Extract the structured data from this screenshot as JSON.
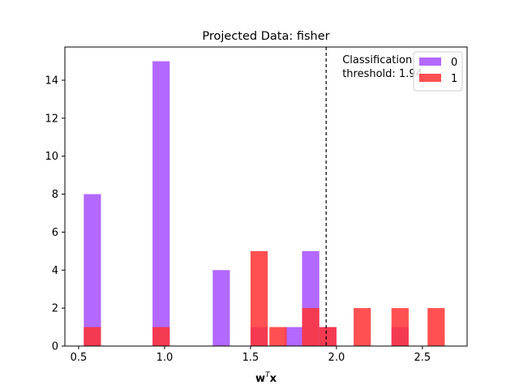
{
  "chart_data": {
    "type": "bar",
    "title": "Projected Data: fisher",
    "xlabel_main": "w",
    "xlabel_sup": "T",
    "xlabel_tail": "x",
    "ylabel": "",
    "xlim": [
      0.42,
      2.76
    ],
    "ylim": [
      0,
      15.75
    ],
    "xticks": [
      0.5,
      1.0,
      1.5,
      2.0,
      2.5
    ],
    "xtick_labels": [
      "0.5",
      "1.0",
      "1.5",
      "2.0",
      "2.5"
    ],
    "yticks": [
      0,
      2,
      4,
      6,
      8,
      10,
      12,
      14
    ],
    "ytick_labels": [
      "0",
      "2",
      "4",
      "6",
      "8",
      "10",
      "12",
      "14"
    ],
    "bin_width": 0.1,
    "series": [
      {
        "name": "0",
        "color": "#a64dff",
        "bins": [
          {
            "x0": 0.53,
            "count": 8
          },
          {
            "x0": 0.93,
            "count": 15
          },
          {
            "x0": 1.28,
            "count": 4
          },
          {
            "x0": 1.5,
            "count": 1
          },
          {
            "x0": 1.7,
            "count": 1
          },
          {
            "x0": 1.8,
            "count": 5
          },
          {
            "x0": 1.9,
            "count": 1
          },
          {
            "x0": 2.32,
            "count": 1
          }
        ]
      },
      {
        "name": "1",
        "color": "#ff3333",
        "bins": [
          {
            "x0": 0.53,
            "count": 1
          },
          {
            "x0": 0.93,
            "count": 1
          },
          {
            "x0": 1.5,
            "count": 5
          },
          {
            "x0": 1.61,
            "count": 1
          },
          {
            "x0": 1.8,
            "count": 2
          },
          {
            "x0": 1.9,
            "count": 1
          },
          {
            "x0": 2.1,
            "count": 2
          },
          {
            "x0": 2.32,
            "count": 2
          },
          {
            "x0": 2.53,
            "count": 2
          }
        ]
      }
    ],
    "threshold": {
      "value": 1.94,
      "label_line1": "Classification",
      "label_line2": "threshold: 1.94"
    },
    "legend": {
      "placement": "top-right",
      "entries": [
        "0",
        "1"
      ]
    },
    "grid": false
  }
}
